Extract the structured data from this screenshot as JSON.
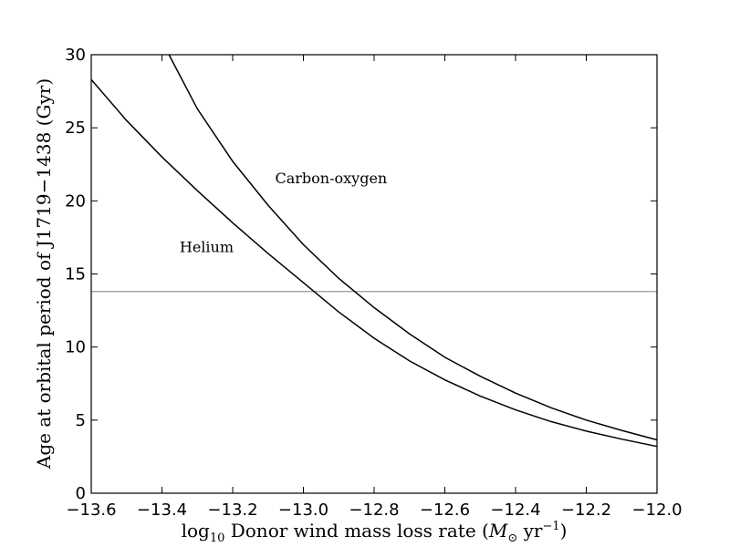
{
  "chart_data": {
    "type": "line",
    "xlabel_prefix": "log",
    "xlabel_sub": "10",
    "xlabel_main": " Donor wind mass loss rate (",
    "xlabel_msun": "M",
    "xlabel_sun": "⊙",
    "xlabel_unit": " yr",
    "xlabel_exp": "−1",
    "xlabel_close": ")",
    "ylabel": "Age at orbital period of J1719−1438 (Gyr)",
    "xlim": [
      -13.6,
      -12.0
    ],
    "ylim": [
      0,
      30
    ],
    "x_ticks": [
      "−13.6",
      "−13.4",
      "−13.2",
      "−13.0",
      "−12.8",
      "−12.6",
      "−12.4",
      "−12.2",
      "−12.0"
    ],
    "y_ticks": [
      "0",
      "5",
      "10",
      "15",
      "20",
      "25",
      "30"
    ],
    "grid": false,
    "reference_line": {
      "y": 13.8,
      "color": "#999999"
    },
    "annotations": [
      {
        "text": "Carbon-oxygen",
        "x": -13.08,
        "y": 21.2
      },
      {
        "text": "Helium",
        "x": -13.35,
        "y": 16.5
      }
    ],
    "series": [
      {
        "name": "Carbon-oxygen",
        "color": "#000000",
        "x": [
          -13.38,
          -13.3,
          -13.2,
          -13.1,
          -13.0,
          -12.9,
          -12.8,
          -12.7,
          -12.6,
          -12.5,
          -12.4,
          -12.3,
          -12.2,
          -12.1,
          -12.0
        ],
        "y": [
          30.0,
          26.3,
          22.7,
          19.7,
          17.0,
          14.7,
          12.7,
          10.9,
          9.3,
          8.0,
          6.85,
          5.85,
          5.0,
          4.3,
          3.65
        ]
      },
      {
        "name": "Helium",
        "color": "#000000",
        "x": [
          -13.6,
          -13.5,
          -13.4,
          -13.3,
          -13.2,
          -13.1,
          -13.0,
          -12.9,
          -12.8,
          -12.7,
          -12.6,
          -12.5,
          -12.4,
          -12.3,
          -12.2,
          -12.1,
          -12.0
        ],
        "y": [
          28.3,
          25.5,
          23.0,
          20.7,
          18.5,
          16.4,
          14.4,
          12.4,
          10.6,
          9.05,
          7.75,
          6.65,
          5.7,
          4.9,
          4.25,
          3.7,
          3.2
        ]
      }
    ]
  }
}
